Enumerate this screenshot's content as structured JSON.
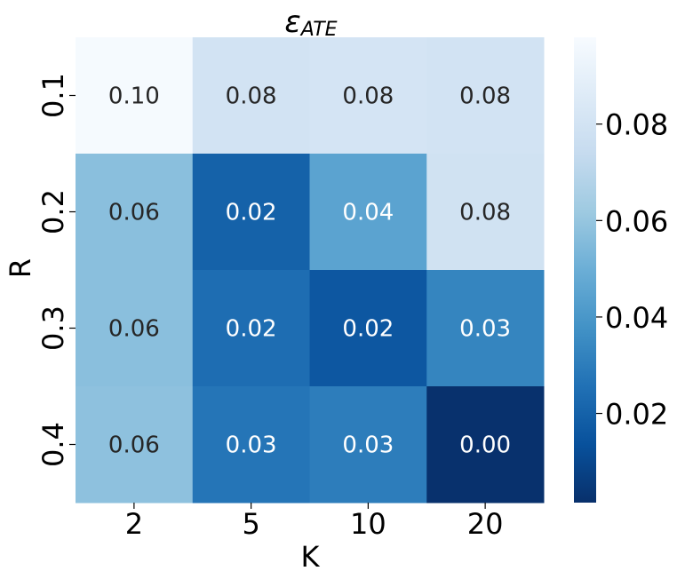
{
  "chart_data": {
    "type": "heatmap",
    "title_main": "ε",
    "title_sub": "ATE",
    "xlabel": "K",
    "ylabel": "R",
    "x_categories": [
      "2",
      "5",
      "10",
      "20"
    ],
    "y_categories": [
      "0.1",
      "0.2",
      "0.3",
      "0.4"
    ],
    "values": [
      [
        0.097,
        0.08,
        0.081,
        0.08
      ],
      [
        0.057,
        0.02,
        0.045,
        0.079
      ],
      [
        0.057,
        0.024,
        0.016,
        0.033
      ],
      [
        0.058,
        0.027,
        0.03,
        0.002
      ]
    ],
    "annotations": [
      [
        "0.10",
        "0.08",
        "0.08",
        "0.08"
      ],
      [
        "0.06",
        "0.02",
        "0.04",
        "0.08"
      ],
      [
        "0.06",
        "0.02",
        "0.02",
        "0.03"
      ],
      [
        "0.06",
        "0.03",
        "0.03",
        "0.00"
      ]
    ],
    "colormap": "Blues_r",
    "colormap_stops": [
      "#08306b",
      "#08519c",
      "#2171b5",
      "#4292c6",
      "#6baed6",
      "#9ecae1",
      "#c6dbef",
      "#deebf7",
      "#f7fbff"
    ],
    "color_range": [
      0.0015,
      0.098
    ],
    "colorbar_ticks": [
      "0.02",
      "0.04",
      "0.06",
      "0.08"
    ],
    "colorbar_tick_values": [
      0.02,
      0.04,
      0.06,
      0.08
    ],
    "annotation_colors": {
      "dark_text": "#262626",
      "light_text": "#ffffff"
    }
  }
}
